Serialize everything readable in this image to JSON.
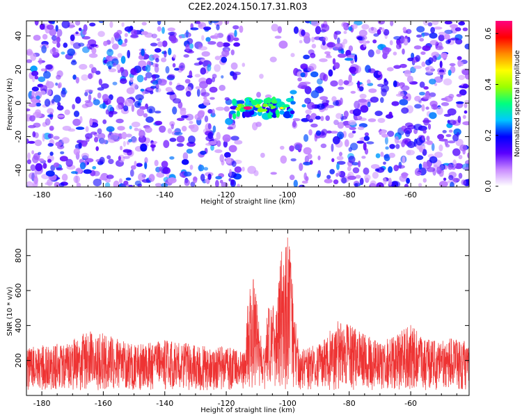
{
  "title": "C2E2.2024.150.17.31.R03",
  "chart_data": [
    {
      "type": "heatmap",
      "title": "C2E2.2024.150.17.31.R03",
      "xlabel": "Height of straight line (km)",
      "ylabel": "Frequency (Hz)",
      "xlim": [
        -185,
        -41
      ],
      "ylim": [
        -50,
        49
      ],
      "xticks": [
        -180,
        -160,
        -140,
        -120,
        -100,
        -80,
        -60
      ],
      "yticks": [
        -40,
        -20,
        0,
        20,
        40
      ],
      "grid": false,
      "gap_x_range": [
        -116,
        -99
      ],
      "signal": {
        "x_range": [
          -118,
          -98
        ],
        "y_range": [
          -8,
          2
        ],
        "peak_x": -113,
        "peak_y": -3,
        "peak_amplitude": 0.65
      },
      "background_amplitude_range": [
        0.05,
        0.25
      ],
      "colorbar": {
        "label": "Normalized spectral amplitude",
        "range": [
          0.0,
          0.65
        ],
        "ticks": [
          0.0,
          0.2,
          0.4,
          0.6
        ],
        "colors": [
          "#ffffff",
          "#c98bff",
          "#5a00ff",
          "#0000ff",
          "#00c8ff",
          "#00ff7f",
          "#9bff00",
          "#ffff00",
          "#ff8c00",
          "#ff0000",
          "#ff0080"
        ]
      }
    },
    {
      "type": "line",
      "xlabel": "Height of straight line (km)",
      "ylabel": "SNR (10 * v/v)",
      "xlim": [
        -185,
        -41
      ],
      "ylim": [
        0,
        950
      ],
      "xticks": [
        -180,
        -160,
        -140,
        -120,
        -100,
        -80,
        -60
      ],
      "yticks": [
        200,
        400,
        600,
        800
      ],
      "grid": false,
      "color": "#ee3333",
      "baseline_range": [
        20,
        250
      ],
      "points": [
        {
          "x": -185,
          "y": 280
        },
        {
          "x": -172,
          "y": 300
        },
        {
          "x": -164,
          "y": 380
        },
        {
          "x": -150,
          "y": 290
        },
        {
          "x": -140,
          "y": 320
        },
        {
          "x": -130,
          "y": 290
        },
        {
          "x": -120,
          "y": 280
        },
        {
          "x": -114,
          "y": 250
        },
        {
          "x": -113,
          "y": 550
        },
        {
          "x": -111,
          "y": 720
        },
        {
          "x": -110,
          "y": 520
        },
        {
          "x": -108,
          "y": 260
        },
        {
          "x": -106,
          "y": 580
        },
        {
          "x": -104,
          "y": 520
        },
        {
          "x": -102,
          "y": 850
        },
        {
          "x": -100,
          "y": 950
        },
        {
          "x": -99,
          "y": 820
        },
        {
          "x": -98,
          "y": 500
        },
        {
          "x": -96,
          "y": 260
        },
        {
          "x": -90,
          "y": 300
        },
        {
          "x": -83,
          "y": 440
        },
        {
          "x": -70,
          "y": 300
        },
        {
          "x": -60,
          "y": 410
        },
        {
          "x": -55,
          "y": 320
        },
        {
          "x": -45,
          "y": 330
        },
        {
          "x": -41,
          "y": 300
        }
      ]
    }
  ]
}
